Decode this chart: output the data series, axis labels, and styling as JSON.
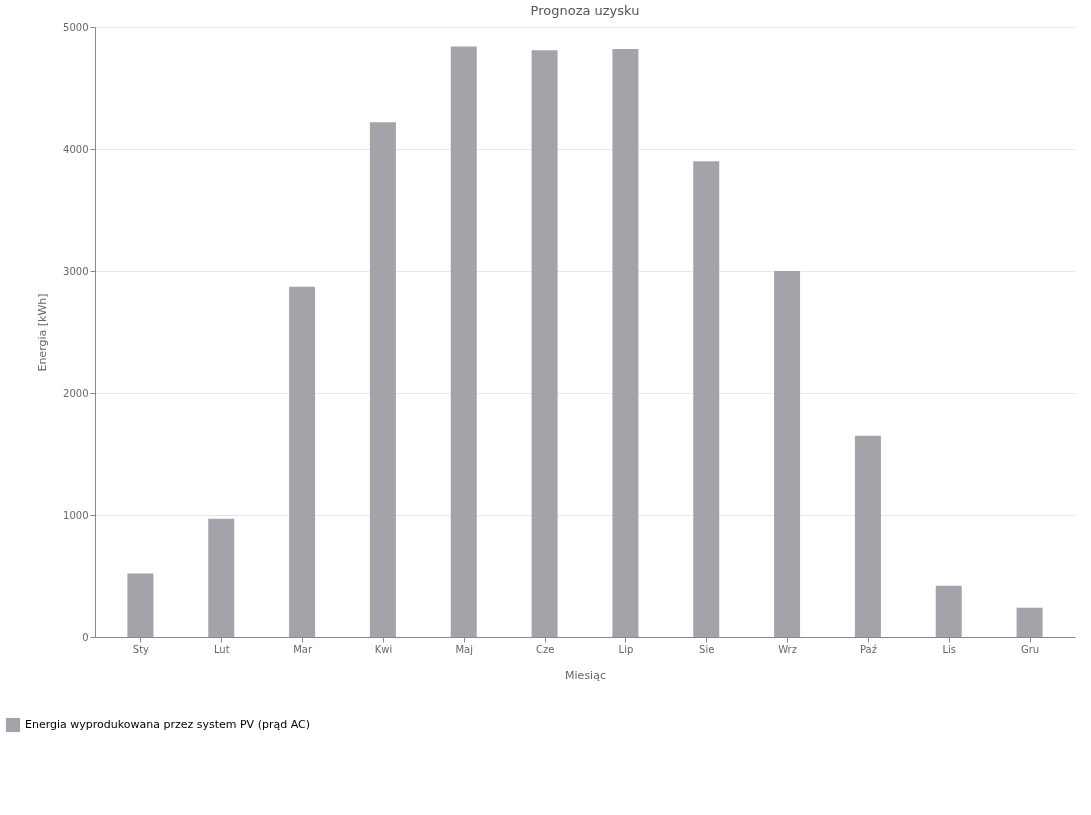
{
  "chart_data": {
    "type": "bar",
    "title": "Prognoza uzysku",
    "xlabel": "Miesiąc",
    "ylabel": "Energia [kWh]",
    "categories": [
      "Sty",
      "Lut",
      "Mar",
      "Kwi",
      "Maj",
      "Cze",
      "Lip",
      "Sie",
      "Wrz",
      "Paź",
      "Lis",
      "Gru"
    ],
    "series": [
      {
        "name": "Energia wyprodukowana przez system PV (prąd AC)",
        "color": "#a3a3aa",
        "values": [
          520,
          970,
          2870,
          4220,
          4840,
          4810,
          4820,
          3900,
          3000,
          1650,
          420,
          240
        ]
      }
    ],
    "ylim": [
      0,
      5000
    ],
    "yticks": [
      0,
      1000,
      2000,
      3000,
      4000,
      5000
    ],
    "grid": "y",
    "legend": "bottom left"
  }
}
